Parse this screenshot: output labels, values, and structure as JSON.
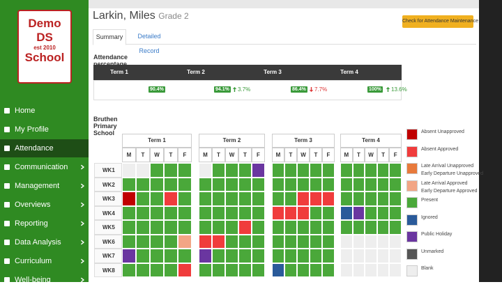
{
  "logo": {
    "line1": "Demo",
    "line2": "DS",
    "line3": "est 2010",
    "line4": "School"
  },
  "nav": [
    {
      "label": "Home",
      "submenu": false
    },
    {
      "label": "My Profile",
      "submenu": false
    },
    {
      "label": "Attendance",
      "submenu": false,
      "active": true
    },
    {
      "label": "Communication",
      "submenu": true
    },
    {
      "label": "Management",
      "submenu": true
    },
    {
      "label": "Overviews",
      "submenu": true
    },
    {
      "label": "Reporting",
      "submenu": true
    },
    {
      "label": "Data Analysis",
      "submenu": true
    },
    {
      "label": "Curriculum",
      "submenu": true
    },
    {
      "label": "Well-being",
      "submenu": true
    }
  ],
  "student": {
    "name": "Larkin, Miles",
    "grade": "Grade 2"
  },
  "button": "Check for Attendance Maintenance",
  "tabs": [
    "Summary",
    "Detailed Record"
  ],
  "summary": {
    "title": "Attendance percentage per term",
    "terms": [
      {
        "name": "Term 1",
        "percent": "90.4%"
      },
      {
        "name": "Term 2",
        "percent": "94.1%",
        "change": "3.7%",
        "direction": "up"
      },
      {
        "name": "Term 3",
        "percent": "86.4%",
        "change": "7.7%",
        "direction": "down"
      },
      {
        "name": "Term 4",
        "percent": "100%",
        "change": "13.6%",
        "direction": "up"
      }
    ]
  },
  "school": "Bruthen Primary School",
  "grid": {
    "terms": [
      "Term 1",
      "Term 2",
      "Term 3",
      "Term 4"
    ],
    "days": [
      "M",
      "T",
      "W",
      "T",
      "F"
    ],
    "weeks": [
      "WK1",
      "WK2",
      "WK3",
      "WK4",
      "WK5",
      "WK6",
      "WK7",
      "WK8"
    ]
  },
  "legend": [
    {
      "lines": [
        "Absent Unapproved"
      ],
      "color": "#c00000"
    },
    {
      "lines": [
        "Absent Approved"
      ],
      "color": "#f03c3c"
    },
    {
      "lines": [
        "Late Arrival Unapproved",
        "Early Departure Unapproved"
      ],
      "color": "#e87a3c"
    },
    {
      "lines": [
        "Late Arrival Approved",
        "Early Departure Approved"
      ],
      "color": "#f2a585"
    },
    {
      "lines": [
        "Present"
      ],
      "color": "#4aa83a"
    },
    {
      "lines": [
        "Ignored"
      ],
      "color": "#2a5a9a"
    },
    {
      "lines": [
        "Public Holiday"
      ],
      "color": "#6a36a0"
    },
    {
      "lines": [
        "Unmarked"
      ],
      "color": "#555555"
    },
    {
      "lines": [
        "Blank"
      ],
      "color": "#eeeeee"
    }
  ]
}
